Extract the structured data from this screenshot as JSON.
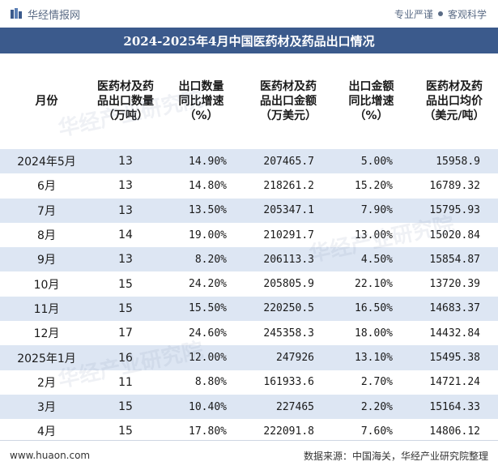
{
  "header": {
    "brand": "华经情报网",
    "slogan_left": "专业严谨",
    "slogan_right": "客观科学"
  },
  "title": "2024-2025年4月中国医药材及药品出口情况",
  "table": {
    "columns": [
      "月份",
      "医药材及药\n品出口数量\n（万吨）",
      "出口数量\n同比增速\n（%）",
      "医药材及药\n品出口金额\n（万美元）",
      "出口金额\n同比增速\n（%）",
      "医药材及药\n品出口均价\n（美元/吨）"
    ],
    "rows": [
      [
        "2024年5月",
        "13",
        "14.90%",
        "207465.7",
        "5.00%",
        "15958.9"
      ],
      [
        "6月",
        "13",
        "14.80%",
        "218261.2",
        "15.20%",
        "16789.32"
      ],
      [
        "7月",
        "13",
        "13.50%",
        "205347.1",
        "7.90%",
        "15795.93"
      ],
      [
        "8月",
        "14",
        "19.00%",
        "210291.7",
        "13.00%",
        "15020.84"
      ],
      [
        "9月",
        "13",
        "8.20%",
        "206113.3",
        "4.50%",
        "15854.87"
      ],
      [
        "10月",
        "15",
        "24.20%",
        "205805.9",
        "22.10%",
        "13720.39"
      ],
      [
        "11月",
        "15",
        "15.50%",
        "220250.5",
        "16.50%",
        "14683.37"
      ],
      [
        "12月",
        "17",
        "24.60%",
        "245358.3",
        "18.00%",
        "14432.84"
      ],
      [
        "2025年1月",
        "16",
        "12.00%",
        "247926",
        "13.10%",
        "15495.38"
      ],
      [
        "2月",
        "11",
        "8.80%",
        "161933.6",
        "2.70%",
        "14721.24"
      ],
      [
        "3月",
        "15",
        "10.40%",
        "227465",
        "2.20%",
        "15164.33"
      ],
      [
        "4月",
        "15",
        "17.80%",
        "222091.8",
        "7.60%",
        "14806.12"
      ]
    ]
  },
  "footer": {
    "url": "www.huaon.com",
    "source": "数据来源：中国海关，华经产业研究院整理"
  },
  "watermark_text": "华经产业研究院",
  "colors": {
    "title_bg": "#3b5a8c",
    "row_stripe": "#dde6f3",
    "brand_text": "#5a6b85"
  }
}
